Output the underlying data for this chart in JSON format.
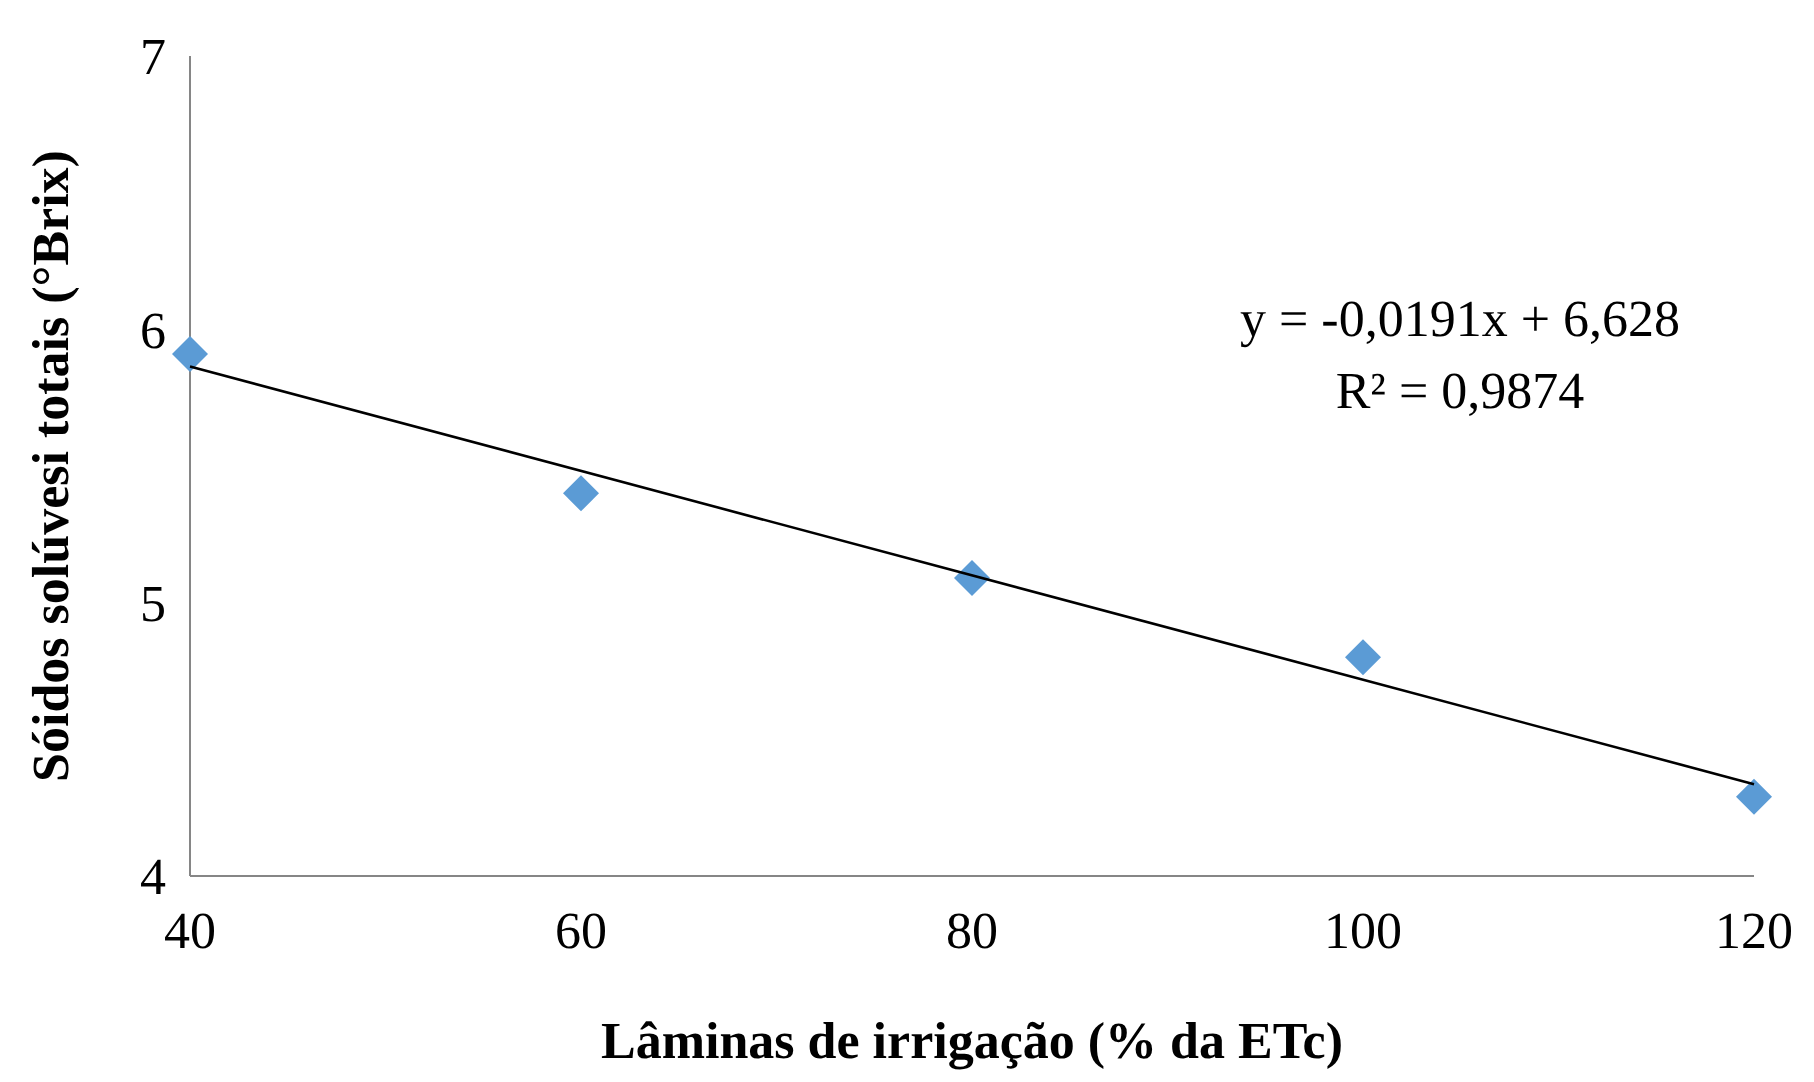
{
  "chart_data": {
    "type": "scatter",
    "xlabel": "Lâminas de irrigação (% da ETc)",
    "ylabel": "Sóidos solúvesi totais (°Brix)",
    "x": [
      40,
      60,
      80,
      100,
      120
    ],
    "series": [
      {
        "color": "#5b9bd5",
        "values": [
          5.91,
          5.4,
          5.09,
          4.8,
          4.29
        ],
        "marker": "diamond"
      },
      {
        "type": "line",
        "color": "#000000",
        "x": [
          40,
          120
        ],
        "values": [
          5.864,
          4.336
        ],
        "marker": "none"
      }
    ],
    "xlim": [
      40,
      120
    ],
    "xticks": [
      40,
      60,
      80,
      100,
      120
    ],
    "ylim": [
      4,
      7
    ],
    "yticks": [
      4,
      5,
      6,
      7
    ],
    "annotations": [
      "y = -0,0191x + 6,628",
      "R² = 0,9874"
    ],
    "grid": false
  }
}
